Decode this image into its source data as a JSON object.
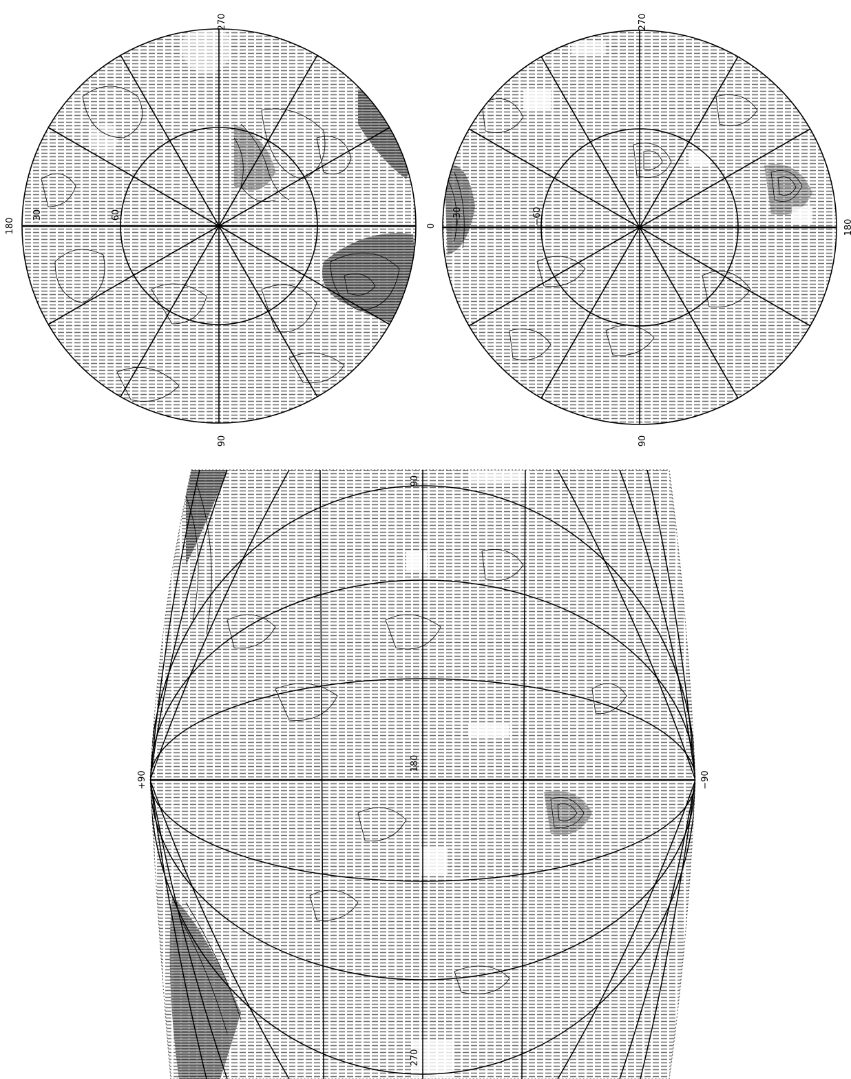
{
  "north_polar_map": {
    "labels": {
      "top": "270",
      "left": "180",
      "right": "0",
      "bottom": "90",
      "ring_outer": "30",
      "ring_inner": "60"
    }
  },
  "south_polar_map": {
    "labels": {
      "top": "270",
      "right": "180",
      "bottom": "90",
      "ring_outer": "−30",
      "ring_inner": "−60"
    }
  },
  "equatorial_map": {
    "labels": {
      "left": "+90",
      "right": "−90",
      "top": "90",
      "center": "180",
      "bottom": "270"
    }
  },
  "colors": {
    "ink": "#000000",
    "hatch": "#6e6e6e",
    "shade_dark": "#4a4a4a",
    "paper": "#ffffff"
  }
}
